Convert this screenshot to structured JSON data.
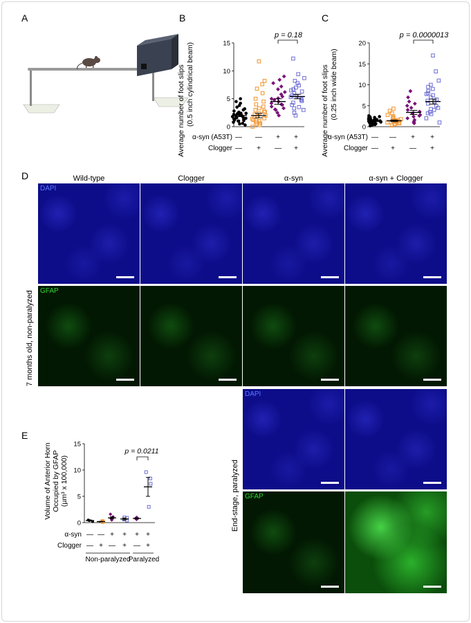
{
  "panels": {
    "A": "A",
    "B": "B",
    "C": "C",
    "D": "D",
    "E": "E"
  },
  "charts": {
    "B": {
      "ylabel_line1": "Average number of foot slips",
      "ylabel_line2": "(0.5 inch cylindrical beam)",
      "yticks": [
        "0",
        "5",
        "10",
        "15"
      ],
      "pvalue": "p = 0.18",
      "row1_label": "α-syn (A53T)",
      "row2_label": "Clogger",
      "row1_signs": [
        "—",
        "—",
        "+",
        "+"
      ],
      "row2_signs": [
        "—",
        "+",
        "—",
        "+"
      ]
    },
    "C": {
      "ylabel_line1": "Average number of foot slips",
      "ylabel_line2": "(0.25 inch wide beam)",
      "yticks": [
        "0",
        "5",
        "10",
        "15",
        "20"
      ],
      "pvalue": "p = 0.0000013",
      "row1_label": "α-syn (A53T)",
      "row2_label": "Clogger",
      "row1_signs": [
        "—",
        "—",
        "+",
        "+"
      ],
      "row2_signs": [
        "—",
        "+",
        "—",
        "+"
      ]
    },
    "E": {
      "ylabel_line1": "Volume of Anterior Horn",
      "ylabel_line2": "Occupied by GFAP",
      "ylabel_line3": "(µm³ x 100,000)",
      "yticks": [
        "0",
        "5",
        "10",
        "15"
      ],
      "pvalue": "p = 0.0211",
      "row1_label": "α-syn",
      "row2_label": "Clogger",
      "row1_signs": [
        "—",
        "—",
        "+",
        "+",
        "+",
        "+"
      ],
      "row2_signs": [
        "—",
        "+",
        "—",
        "+",
        "—",
        "+"
      ],
      "group1": "Non-paralyzed",
      "group2": "Paralyzed"
    }
  },
  "panel_D": {
    "columns": [
      "Wild-type",
      "Clogger",
      "α-syn",
      "α-syn + Clogger"
    ],
    "row_label_top": "7 months old, non-paralyzed",
    "row_label_bottom": "End-stage, paralyzed",
    "channel_dapi": "DAPI",
    "channel_gfap": "GFAP"
  },
  "colors": {
    "wildtype": "#000000",
    "clogger": "#f39a3a",
    "asyn": "#7a1378",
    "asyn_clogger": "#6c6cd6"
  },
  "chart_data": [
    {
      "type": "scatter",
      "title": "",
      "ylabel": "Average number of foot slips (0.5 inch cylindrical beam)",
      "ylim": [
        0,
        15
      ],
      "categories": [
        "WT",
        "Clogger",
        "α-syn (A53T)",
        "α-syn (A53T) + Clogger"
      ],
      "means": [
        2.0,
        2.0,
        4.5,
        5.4
      ],
      "sem": [
        0.2,
        0.4,
        0.5,
        0.4
      ],
      "series": [
        {
          "values": [
            0.3,
            0.6,
            0.8,
            1.0,
            1.1,
            1.2,
            1.3,
            1.4,
            1.5,
            1.6,
            1.7,
            1.8,
            1.9,
            2.0,
            2.1,
            2.2,
            2.3,
            2.4,
            2.5,
            2.6,
            2.8,
            3.0,
            3.2,
            3.5,
            3.8,
            4.2,
            4.5,
            5.0,
            0.5,
            1.0,
            1.6,
            2.4
          ]
        },
        {
          "values": [
            0.0,
            0.3,
            0.5,
            0.8,
            1.0,
            1.2,
            1.4,
            1.5,
            1.7,
            1.9,
            2.0,
            2.2,
            2.4,
            2.6,
            2.8,
            3.0,
            3.3,
            3.6,
            4.0,
            4.5,
            5.0,
            6.0,
            6.8,
            7.6,
            8.2,
            11.7,
            0.6,
            1.1
          ]
        },
        {
          "values": [
            2.0,
            2.5,
            3.0,
            3.3,
            3.6,
            3.9,
            4.2,
            4.5,
            4.8,
            5.1,
            5.4,
            5.8,
            6.2,
            6.7,
            7.2,
            7.8,
            8.4,
            9.0,
            3.1,
            4.0,
            5.0
          ]
        },
        {
          "values": [
            2.0,
            2.5,
            3.0,
            3.5,
            3.9,
            4.3,
            4.6,
            5.0,
            5.3,
            5.6,
            6.0,
            6.3,
            6.7,
            7.0,
            7.4,
            7.8,
            8.2,
            8.7,
            9.4,
            12.2,
            4.8,
            5.5,
            6.5,
            3.3
          ]
        }
      ],
      "annotations": [
        "p = 0.18"
      ]
    },
    {
      "type": "scatter",
      "title": "",
      "ylabel": "Average number of foot slips (0.25 inch wide beam)",
      "ylim": [
        0,
        20
      ],
      "categories": [
        "WT",
        "Clogger",
        "α-syn (A53T)",
        "α-syn (A53T) + Clogger"
      ],
      "means": [
        1.3,
        1.4,
        3.4,
        6.0
      ],
      "sem": [
        0.1,
        0.2,
        0.5,
        0.6
      ],
      "series": [
        {
          "values": [
            0.2,
            0.5,
            0.7,
            0.9,
            1.0,
            1.1,
            1.2,
            1.3,
            1.4,
            1.5,
            1.6,
            1.7,
            1.8,
            1.9,
            2.0,
            2.1,
            2.2,
            2.4,
            2.6,
            0.4,
            0.8,
            1.2,
            1.6,
            2.0,
            2.3,
            1.0,
            0.6,
            1.4
          ]
        },
        {
          "values": [
            0.3,
            0.5,
            0.7,
            0.9,
            1.0,
            1.1,
            1.2,
            1.3,
            1.4,
            1.5,
            1.6,
            1.8,
            2.0,
            2.2,
            2.5,
            2.8,
            3.2,
            3.8,
            4.3,
            0.8,
            1.1
          ]
        },
        {
          "values": [
            0.8,
            1.2,
            1.6,
            2.0,
            2.4,
            2.8,
            3.2,
            3.6,
            4.0,
            4.5,
            5.0,
            5.5,
            6.0,
            7.0,
            8.5,
            1.0,
            2.6
          ]
        },
        {
          "values": [
            1.0,
            2.0,
            3.0,
            3.5,
            4.0,
            4.5,
            5.0,
            5.5,
            6.0,
            6.5,
            7.0,
            7.5,
            8.0,
            8.5,
            9.0,
            9.5,
            10.0,
            11.0,
            13.2,
            17.0,
            3.2,
            4.2,
            6.2,
            7.8
          ]
        }
      ],
      "annotations": [
        "p = 0.0000013"
      ]
    },
    {
      "type": "scatter",
      "title": "",
      "ylabel": "Volume of Anterior Horn Occupied by GFAP (µm³ x 100,000)",
      "ylim": [
        0,
        15
      ],
      "categories": [
        "Non-paralyzed WT",
        "Non-paralyzed Clogger",
        "Non-paralyzed α-syn",
        "Non-paralyzed α-syn + Clogger",
        "Paralyzed α-syn",
        "Paralyzed α-syn + Clogger"
      ],
      "means": [
        0.4,
        0.2,
        0.9,
        0.7,
        0.8,
        6.8
      ],
      "sem": [
        0.1,
        0.05,
        0.2,
        0.2,
        0.1,
        1.8
      ],
      "series": [
        {
          "values": [
            0.2,
            0.4,
            0.5
          ]
        },
        {
          "values": [
            0.1,
            0.2,
            0.3
          ]
        },
        {
          "values": [
            0.5,
            0.8,
            1.1,
            1.6
          ]
        },
        {
          "values": [
            0.4,
            0.6,
            0.9,
            1.0
          ]
        },
        {
          "values": [
            0.6,
            0.8,
            1.0
          ]
        },
        {
          "values": [
            3.0,
            7.4,
            8.4,
            9.6
          ]
        }
      ],
      "annotations": [
        "p = 0.0211"
      ]
    }
  ]
}
